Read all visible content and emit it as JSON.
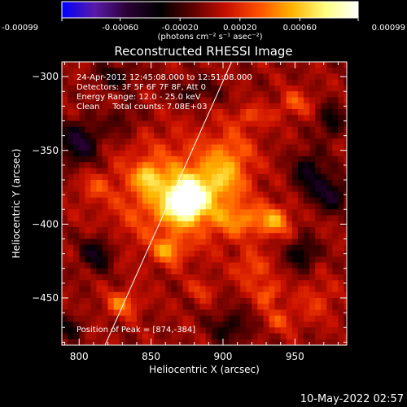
{
  "chart_data": {
    "type": "heatmap",
    "title": "Reconstructed RHESSI Image",
    "xlabel": "Heliocentric X (arcsec)",
    "ylabel": "Heliocentric Y (arcsec)",
    "x_ticks": [
      800,
      850,
      900,
      950
    ],
    "y_ticks": [
      -300,
      -350,
      -400,
      -450
    ],
    "xlim": [
      788,
      986
    ],
    "ylim": [
      -482,
      -290
    ],
    "grid": false,
    "colorbar": {
      "placement": "top",
      "unit_label": "(photons cm⁻² s⁻¹ asec⁻²)",
      "range": [
        -0.00099,
        0.00099
      ],
      "ticks": [
        "-0.00099",
        "-0.00060",
        "-0.00020",
        "0.00020",
        "0.00060",
        "0.00099"
      ],
      "tick_values": [
        -0.00099,
        -0.0006,
        -0.0002,
        0.0002,
        0.0006,
        0.00099
      ],
      "colors": [
        "#0000ff",
        "#5a1aa8",
        "#2a0033",
        "#000000",
        "#600000",
        "#c81000",
        "#ff5000",
        "#ffb400",
        "#ffff80",
        "#ffffff"
      ]
    },
    "annotations": [
      "24-Apr-2012 12:45:08.000 to 12:51:08.000",
      "Detectors: 3F 5F 6F 7F 8F, Att 0",
      "Energy Range: 12.0 - 25.0 keV",
      "Clean     Total counts: 7.08E+03"
    ],
    "peak_label": "Position of Peak = [874,-384]",
    "peak": [
      874,
      -384
    ],
    "limb_line": [
      [
        818,
        -482
      ],
      [
        906,
        -290
      ]
    ],
    "sources": [
      {
        "x": 874,
        "y": -384,
        "sx": 9,
        "sy": 9,
        "a": 0.00099
      },
      {
        "x": 866,
        "y": -380,
        "sx": 28,
        "sy": 24,
        "a": 0.00048
      },
      {
        "x": 848,
        "y": -368,
        "sx": 6,
        "sy": 6,
        "a": 0.0004
      },
      {
        "x": 898,
        "y": -372,
        "sx": 12,
        "sy": 10,
        "a": 0.00032
      },
      {
        "x": 905,
        "y": -352,
        "sx": 12,
        "sy": 12,
        "a": 0.0003
      },
      {
        "x": 912,
        "y": -397,
        "sx": 14,
        "sy": 8,
        "a": 0.00036
      },
      {
        "x": 936,
        "y": -398,
        "sx": 8,
        "sy": 7,
        "a": 0.00042
      },
      {
        "x": 862,
        "y": -418,
        "sx": 7,
        "sy": 6,
        "a": 0.0004
      },
      {
        "x": 920,
        "y": -430,
        "sx": 8,
        "sy": 8,
        "a": 0.0003
      },
      {
        "x": 931,
        "y": -447,
        "sx": 6,
        "sy": 6,
        "a": 0.00036
      },
      {
        "x": 830,
        "y": -454,
        "sx": 8,
        "sy": 6,
        "a": 0.0004
      },
      {
        "x": 950,
        "y": -318,
        "sx": 8,
        "sy": 6,
        "a": 0.0003
      },
      {
        "x": 920,
        "y": -327,
        "sx": 10,
        "sy": 5,
        "a": 0.00024
      },
      {
        "x": 810,
        "y": -375,
        "sx": 7,
        "sy": 6,
        "a": 0.00022
      },
      {
        "x": 965,
        "y": -452,
        "sx": 10,
        "sy": 10,
        "a": 0.0002
      },
      {
        "x": 940,
        "y": -465,
        "sx": 8,
        "sy": 6,
        "a": 0.00026
      },
      {
        "x": 885,
        "y": -445,
        "sx": 6,
        "sy": 5,
        "a": 0.00022
      },
      {
        "x": 975,
        "y": -380,
        "sx": 8,
        "sy": 8,
        "a": -0.00045
      },
      {
        "x": 960,
        "y": -365,
        "sx": 8,
        "sy": 10,
        "a": -0.0004
      },
      {
        "x": 955,
        "y": -420,
        "sx": 7,
        "sy": 7,
        "a": -0.0004
      },
      {
        "x": 800,
        "y": -345,
        "sx": 10,
        "sy": 10,
        "a": -0.0005
      },
      {
        "x": 812,
        "y": -420,
        "sx": 8,
        "sy": 8,
        "a": -0.00042
      },
      {
        "x": 825,
        "y": -300,
        "sx": 10,
        "sy": 6,
        "a": -0.0003
      },
      {
        "x": 880,
        "y": -310,
        "sx": 12,
        "sy": 6,
        "a": -0.00025
      },
      {
        "x": 905,
        "y": -470,
        "sx": 10,
        "sy": 8,
        "a": -0.0003
      },
      {
        "x": 975,
        "y": -330,
        "sx": 6,
        "sy": 8,
        "a": -0.00035
      },
      {
        "x": 793,
        "y": -470,
        "sx": 6,
        "sy": 6,
        "a": -0.0003
      },
      {
        "x": 830,
        "y": -330,
        "sx": 8,
        "sy": 8,
        "a": -0.0002
      }
    ]
  },
  "footer": {
    "date": "10-May-2022 02:57"
  }
}
